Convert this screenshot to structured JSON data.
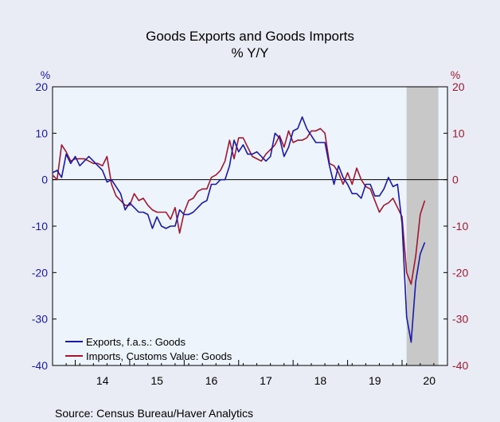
{
  "chart_data": {
    "type": "line",
    "title": "Goods Exports and Goods Imports",
    "subtitle": "% Y/Y",
    "left_unit": "%",
    "right_unit": "%",
    "source": "Source:  Census Bureau/Haver Analytics",
    "ylim": [
      -40,
      20
    ],
    "yticks": [
      20,
      10,
      0,
      -10,
      -20,
      -30,
      -40
    ],
    "year_labels": [
      "14",
      "15",
      "16",
      "17",
      "18",
      "19",
      "20"
    ],
    "recession_shading": {
      "start": "2020-02",
      "end": "2020-09"
    },
    "grid": false,
    "legend_position": "bottom-left",
    "colors": {
      "exports": "#1a1aa6",
      "imports": "#a01830",
      "left_axis": "#1a1aa6",
      "right_axis": "#a01830",
      "shade": "#c8c8c8",
      "plot_bg": "#eef4fc"
    },
    "series": [
      {
        "name": "Exports, f.a.s.: Goods",
        "start": "2013-08",
        "values": [
          1.5,
          2.0,
          0.5,
          5.5,
          3.5,
          5.0,
          3.0,
          4.0,
          5.0,
          4.0,
          3.0,
          2.0,
          -0.5,
          0.0,
          -1.5,
          -3.0,
          -6.5,
          -5.0,
          -6.0,
          -7.0,
          -7.0,
          -7.5,
          -10.5,
          -8.0,
          -10.0,
          -10.5,
          -10.0,
          -10.0,
          -6.5,
          -7.5,
          -7.5,
          -7.0,
          -6.0,
          -5.0,
          -4.5,
          -1.0,
          -1.0,
          0.0,
          0.0,
          3.0,
          8.5,
          6.0,
          7.5,
          5.5,
          5.5,
          6.0,
          5.0,
          4.0,
          5.0,
          10.0,
          9.0,
          5.0,
          7.0,
          10.5,
          11.0,
          13.5,
          11.0,
          9.5,
          8.0,
          8.0,
          8.0,
          3.0,
          -1.0,
          3.0,
          0.5,
          -1.0,
          -3.0,
          -3.0,
          -4.0,
          -1.0,
          -1.0,
          -3.5,
          -3.5,
          -2.0,
          0.5,
          -1.5,
          -1.0,
          -9.5,
          -29.5,
          -35.0,
          -22.0,
          -16.0,
          -13.5
        ]
      },
      {
        "name": "Imports, Customs Value: Goods",
        "start": "2013-08",
        "values": [
          1.0,
          0.0,
          7.5,
          6.0,
          4.0,
          4.5,
          4.5,
          4.5,
          4.0,
          3.5,
          3.5,
          3.0,
          5.0,
          -1.0,
          -3.5,
          -4.5,
          -5.5,
          -5.5,
          -3.0,
          -4.5,
          -4.0,
          -5.5,
          -6.5,
          -7.0,
          -7.0,
          -7.0,
          -8.5,
          -6.0,
          -11.5,
          -7.0,
          -4.5,
          -4.0,
          -2.5,
          -2.0,
          -2.0,
          0.5,
          1.0,
          2.0,
          4.0,
          8.5,
          4.5,
          9.0,
          9.0,
          7.0,
          5.0,
          4.5,
          4.0,
          5.5,
          6.5,
          7.5,
          9.5,
          7.0,
          10.5,
          8.0,
          8.5,
          8.5,
          9.0,
          10.5,
          10.5,
          11.0,
          10.0,
          3.5,
          3.0,
          1.5,
          -1.0,
          1.5,
          -1.0,
          2.5,
          0.0,
          -1.5,
          -2.0,
          -4.5,
          -7.0,
          -5.5,
          -5.0,
          -4.0,
          -6.0,
          -8.0,
          -20.0,
          -22.5,
          -16.5,
          -7.5,
          -4.5
        ]
      }
    ]
  }
}
